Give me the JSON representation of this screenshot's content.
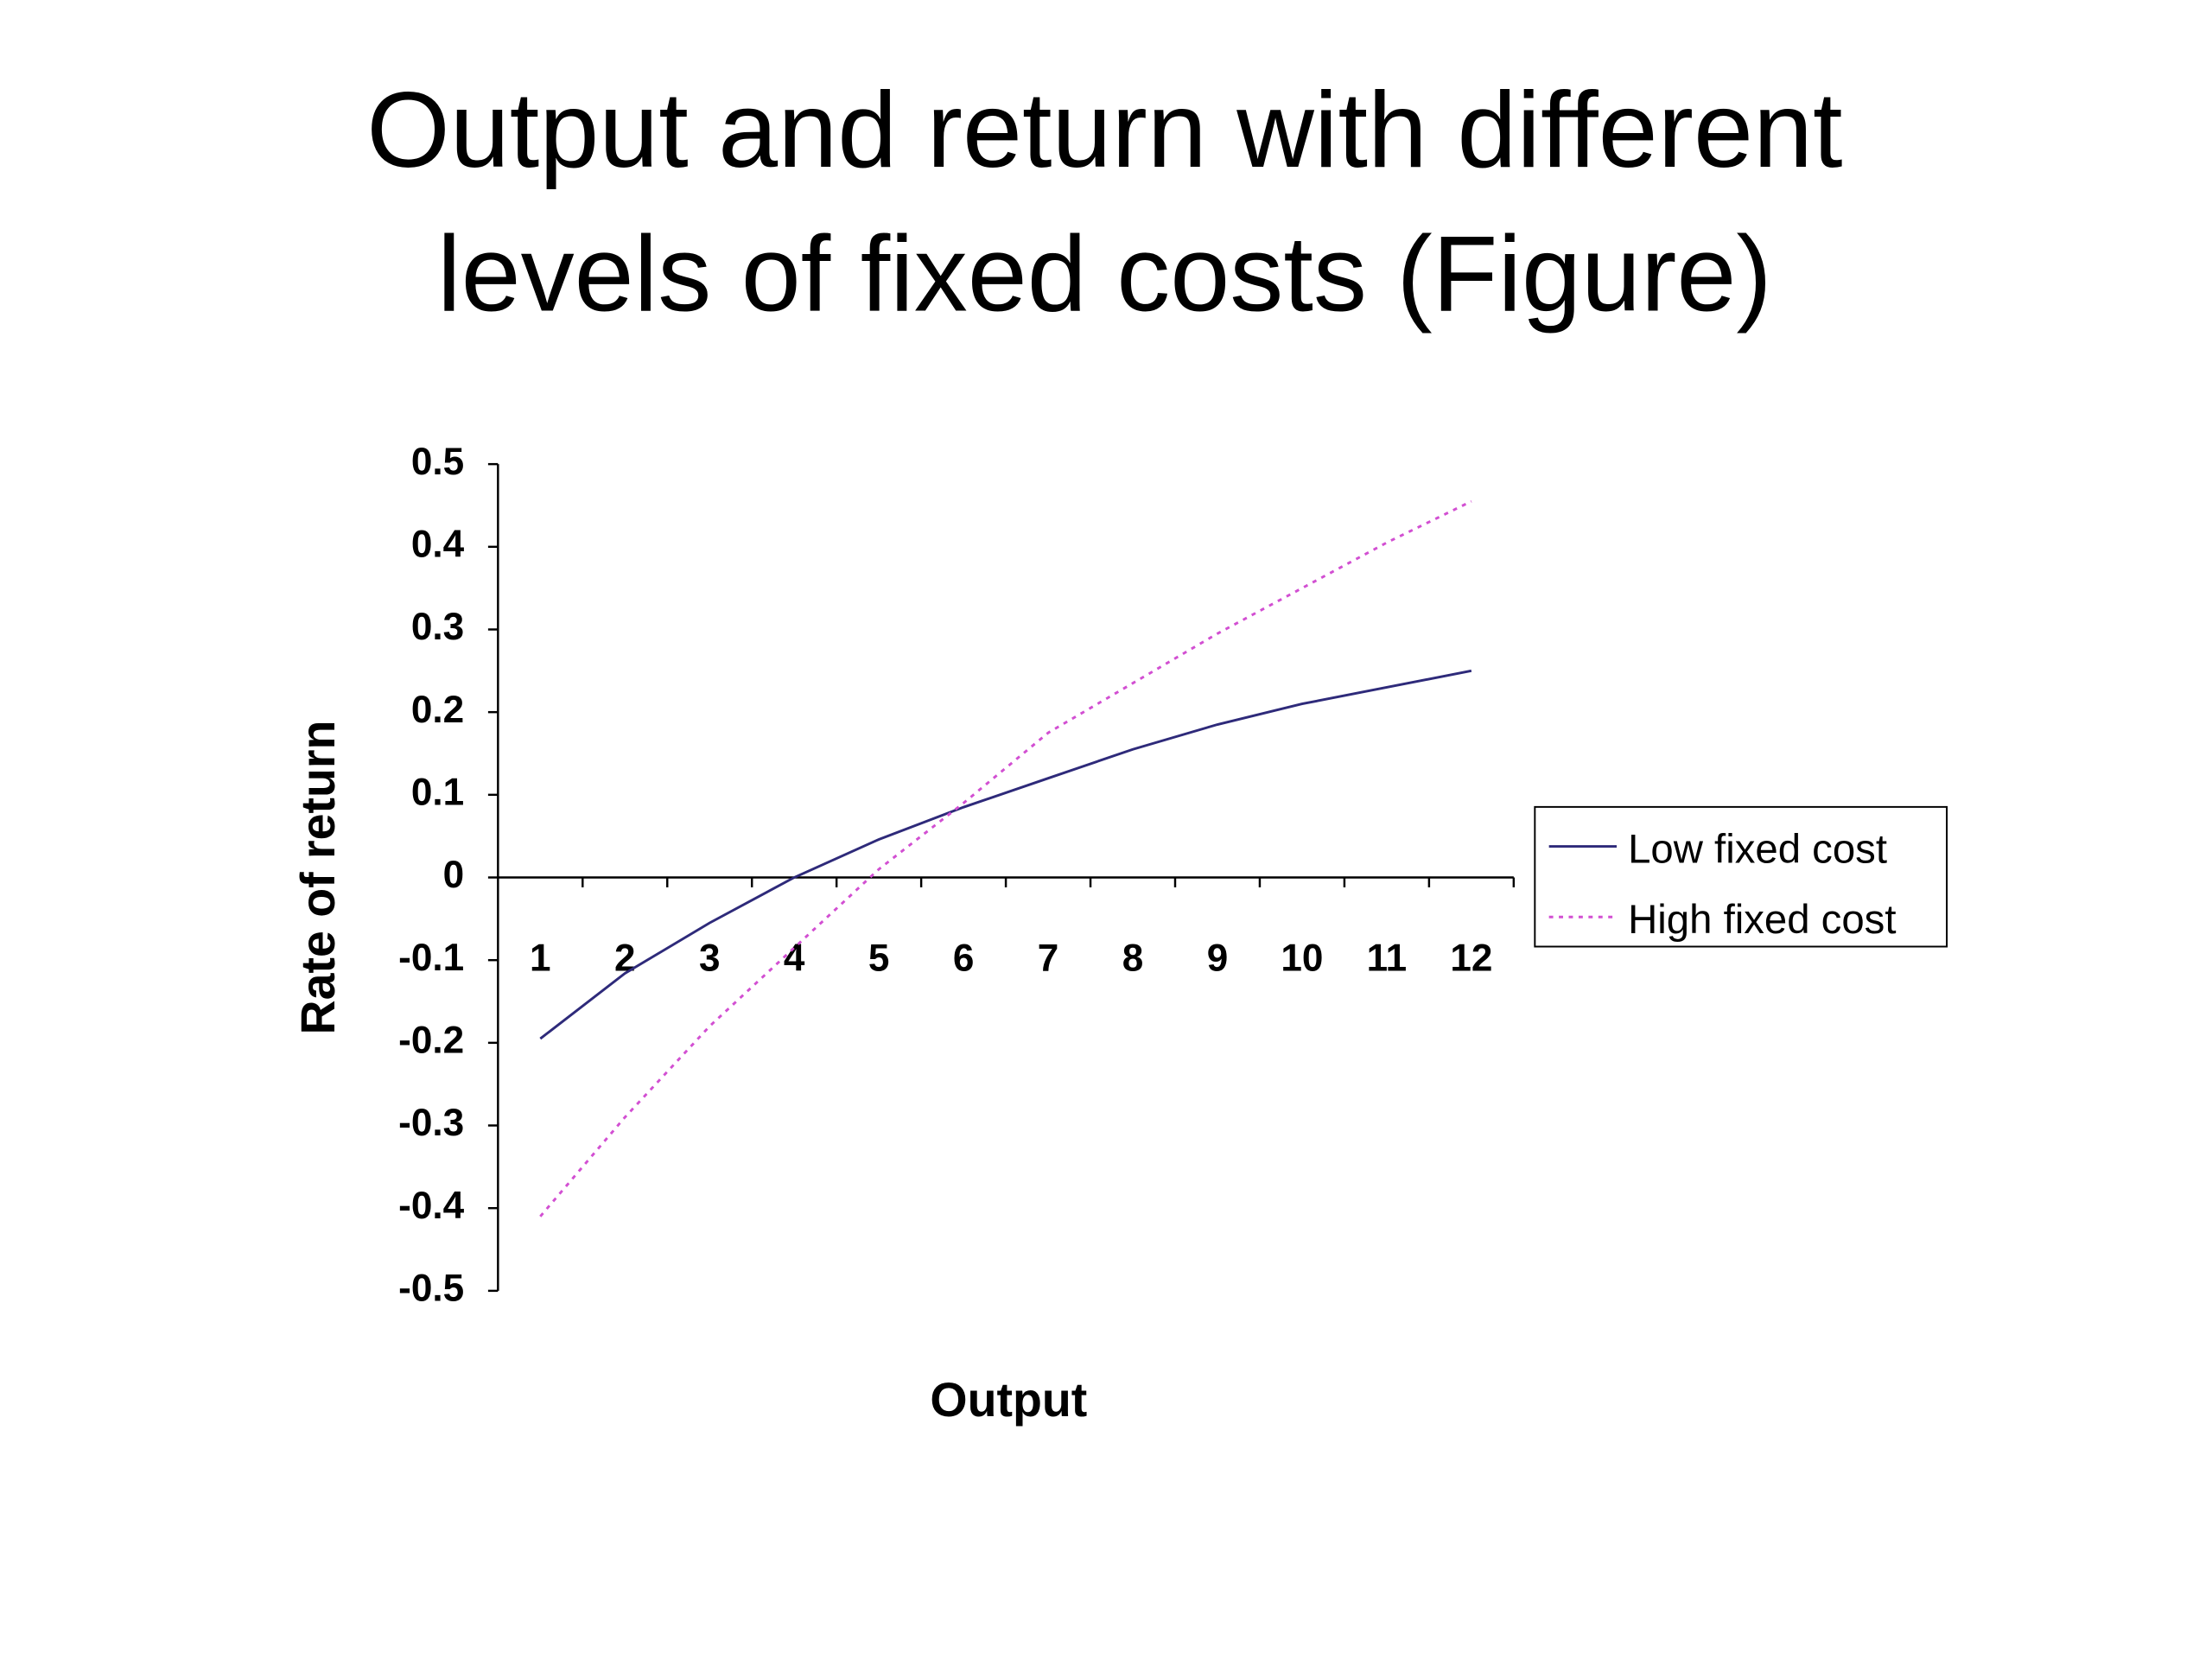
{
  "chart_data": {
    "type": "line",
    "title": [
      "Output and return with different",
      "levels of fixed costs  (Figure)"
    ],
    "x_label": "Output",
    "y_label": "Rate of return",
    "categories": [
      "1",
      "2",
      "3",
      "4",
      "5",
      "6",
      "7",
      "8",
      "9",
      "10",
      "11",
      "12"
    ],
    "series": [
      {
        "name": "Low fixed cost",
        "color": "#2e2a7a",
        "line_style": "solid",
        "values": [
          -0.195,
          -0.116,
          -0.055,
          0.0,
          0.046,
          0.085,
          0.12,
          0.155,
          0.185,
          0.21,
          0.23,
          0.25
        ]
      },
      {
        "name": "High fixed cost",
        "color": "#d24fd2",
        "line_style": "dotted",
        "values": [
          -0.41,
          -0.29,
          -0.18,
          -0.085,
          0.01,
          0.09,
          0.175,
          0.235,
          0.295,
          0.35,
          0.405,
          0.455
        ]
      }
    ],
    "ylim": [
      -0.5,
      0.5
    ],
    "yticks": [
      -0.5,
      -0.4,
      -0.3,
      -0.2,
      -0.1,
      0,
      0.1,
      0.2,
      0.3,
      0.4,
      0.5
    ],
    "grid": false,
    "legend": "right"
  }
}
